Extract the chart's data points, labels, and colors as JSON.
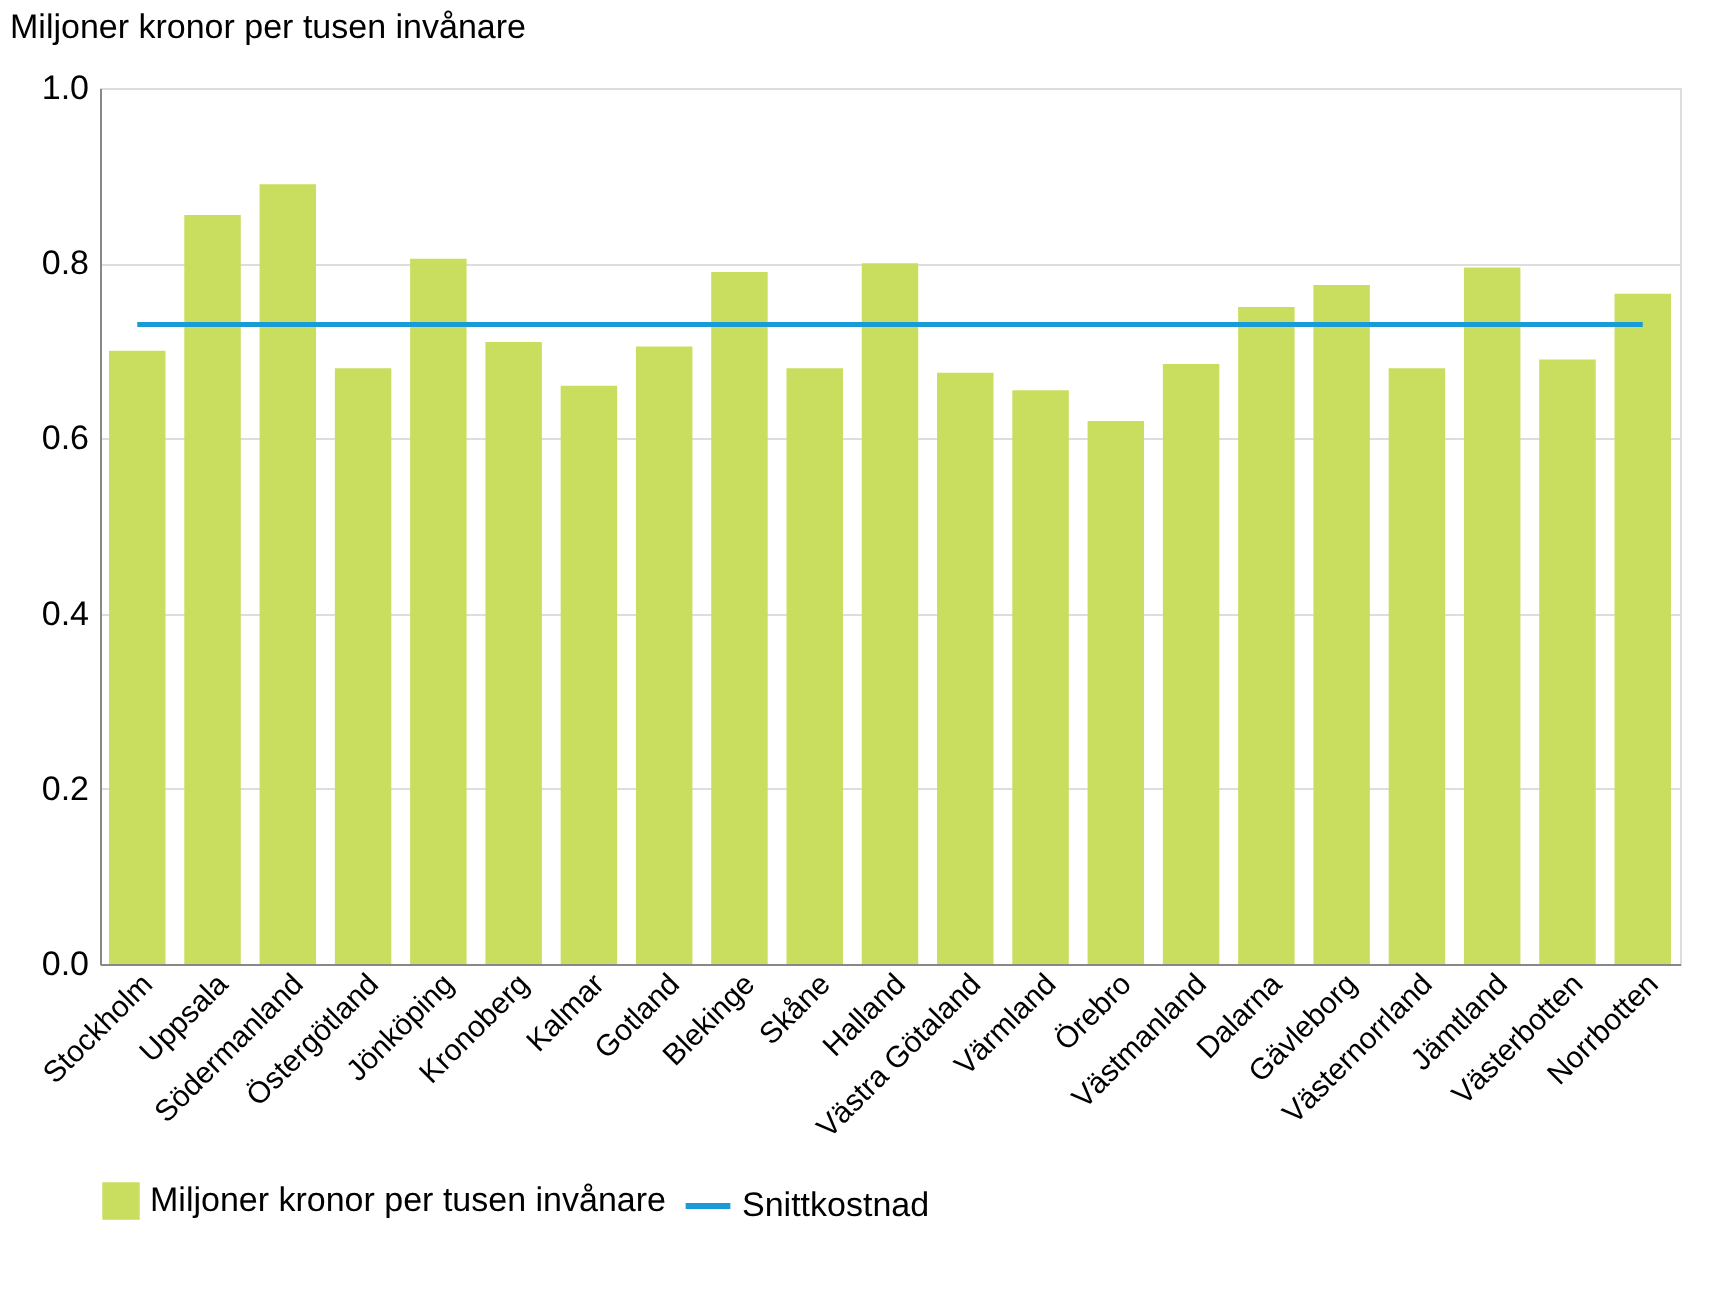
{
  "chart_data": {
    "type": "bar",
    "ylabel": "Miljoner kronor per tusen invånare",
    "categories": [
      "Stockholm",
      "Uppsala",
      "Södermanland",
      "Östergötland",
      "Jönköping",
      "Kronoberg",
      "Kalmar",
      "Gotland",
      "Blekinge",
      "Skåne",
      "Halland",
      "Västra Götaland",
      "Värmland",
      "Örebro",
      "Västmanland",
      "Dalarna",
      "Gävleborg",
      "Västernorrland",
      "Jämtland",
      "Västerbotten",
      "Norrbotten"
    ],
    "series": [
      {
        "name": "Miljoner kronor per tusen invånare",
        "color": "#c9dd5e",
        "values": [
          0.7,
          0.855,
          0.89,
          0.68,
          0.805,
          0.71,
          0.66,
          0.705,
          0.79,
          0.68,
          0.8,
          0.675,
          0.655,
          0.62,
          0.685,
          0.75,
          0.775,
          0.68,
          0.795,
          0.69,
          0.765
        ]
      },
      {
        "name": "Snittkostnad",
        "type": "line",
        "color": "#1a9ad6",
        "values": [
          0.73,
          0.73,
          0.73,
          0.73,
          0.73,
          0.73,
          0.73,
          0.73,
          0.73,
          0.73,
          0.73,
          0.73,
          0.73,
          0.73,
          0.73,
          0.73,
          0.73,
          0.73,
          0.73,
          0.73,
          0.73
        ]
      }
    ],
    "ylim": [
      0,
      1
    ],
    "yticks": [
      {
        "value": 0,
        "label": "0.0"
      },
      0.2,
      0.4,
      0.6,
      0.8,
      {
        "value": 1,
        "label": "1.0"
      }
    ],
    "grid": "y",
    "legend": "bottom"
  }
}
